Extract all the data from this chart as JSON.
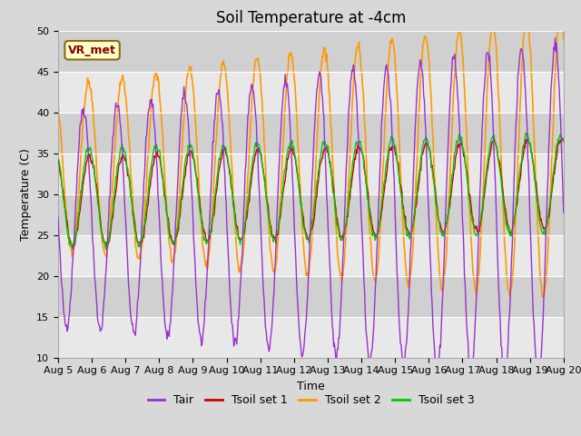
{
  "title": "Soil Temperature at -4cm",
  "xlabel": "Time",
  "ylabel": "Temperature (C)",
  "ylim": [
    10,
    50
  ],
  "x_tick_labels": [
    "Aug 5",
    "Aug 6",
    "Aug 7",
    "Aug 8",
    "Aug 9",
    "Aug 10",
    "Aug 11",
    "Aug 12",
    "Aug 13",
    "Aug 14",
    "Aug 15",
    "Aug 16",
    "Aug 17",
    "Aug 18",
    "Aug 19",
    "Aug 20"
  ],
  "annotation_text": "VR_met",
  "line_colors": {
    "Tair": "#9932cc",
    "Tsoil_set1": "#cc0000",
    "Tsoil_set2": "#ff9900",
    "Tsoil_set3": "#00cc00"
  },
  "legend_labels": [
    "Tair",
    "Tsoil set 1",
    "Tsoil set 2",
    "Tsoil set 3"
  ],
  "bg_color": "#d8d8d8",
  "plot_bg_light": "#e8e8e8",
  "plot_bg_dark": "#d0d0d0",
  "title_fontsize": 12,
  "axis_fontsize": 9,
  "tick_fontsize": 8,
  "yticks": [
    10,
    15,
    20,
    25,
    30,
    35,
    40,
    45,
    50
  ]
}
